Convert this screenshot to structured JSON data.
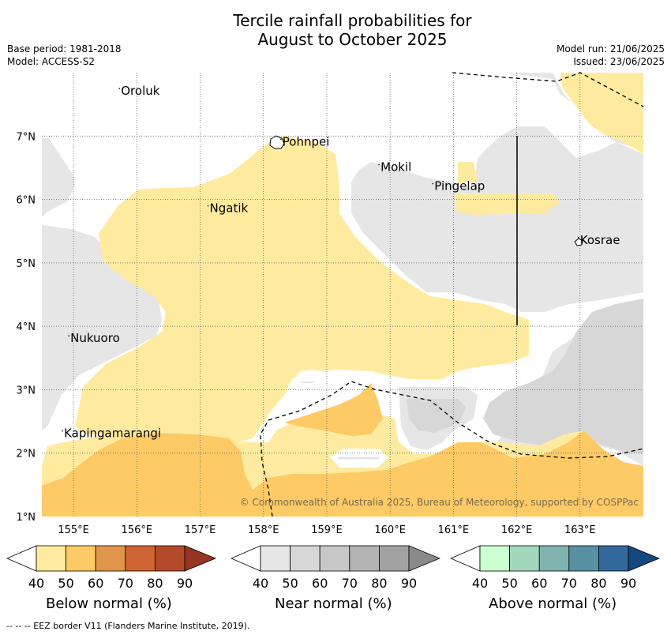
{
  "title_line1": "Tercile rainfall probabilities for",
  "title_line2": "August to October 2025",
  "base_period": "Base period: 1981-2018",
  "model": "Model: ACCESS-S2",
  "model_run": "Model run: 21/06/2025",
  "issued": "Issued: 23/06/2025",
  "copyright": "© Commonwealth of Australia 2025, Bureau of Meteorology, supported by COSPPac",
  "map": {
    "lon_range": [
      154.5,
      164.0
    ],
    "lat_range": [
      1.0,
      8.0
    ],
    "lon_ticks": [
      "155°E",
      "156°E",
      "157°E",
      "158°E",
      "159°E",
      "160°E",
      "161°E",
      "162°E",
      "163°E"
    ],
    "lat_ticks": [
      "1°N",
      "2°N",
      "3°N",
      "4°N",
      "5°N",
      "6°N",
      "7°N"
    ],
    "places": [
      {
        "name": "Oroluk",
        "lon": 155.75,
        "lat": 7.65
      },
      {
        "name": "Pohnpei",
        "lon": 158.3,
        "lat": 6.85
      },
      {
        "name": "Mokil",
        "lon": 159.85,
        "lat": 6.45
      },
      {
        "name": "Pingelap",
        "lon": 160.7,
        "lat": 6.15
      },
      {
        "name": "Ngatik",
        "lon": 157.15,
        "lat": 5.8
      },
      {
        "name": "Kosrae",
        "lon": 163.0,
        "lat": 5.3
      },
      {
        "name": "Nukuoro",
        "lon": 154.95,
        "lat": 3.75
      },
      {
        "name": "Kapingamarangi",
        "lon": 154.85,
        "lat": 2.25
      }
    ],
    "colors": {
      "below_40": "#ffeb9f",
      "below_50": "#fdca66",
      "near_40": "#e6e6e6",
      "near_50": "#d7d7d7",
      "ocean": "#ffffff"
    }
  },
  "colorbars": [
    {
      "label": "Below normal (%)",
      "ticks": [
        "40",
        "50",
        "60",
        "70",
        "80",
        "90"
      ],
      "colors": [
        "#ffeb9f",
        "#fdca66",
        "#e0964a",
        "#cf6434",
        "#b34b2a",
        "#963522"
      ]
    },
    {
      "label": "Near normal (%)",
      "ticks": [
        "40",
        "50",
        "60",
        "70",
        "80",
        "90"
      ],
      "colors": [
        "#e6e6e6",
        "#d7d7d7",
        "#c8c8c8",
        "#b4b4b4",
        "#a2a2a2",
        "#8a8a8a"
      ]
    },
    {
      "label": "Above normal (%)",
      "ticks": [
        "40",
        "50",
        "60",
        "70",
        "80",
        "90"
      ],
      "colors": [
        "#ccffd1",
        "#a2d9bd",
        "#80b3b0",
        "#5791a3",
        "#33689b",
        "#15487e"
      ]
    }
  ],
  "footnote": "-- -- -- EEZ border V11 (Flanders Marine Institute, 2019)."
}
